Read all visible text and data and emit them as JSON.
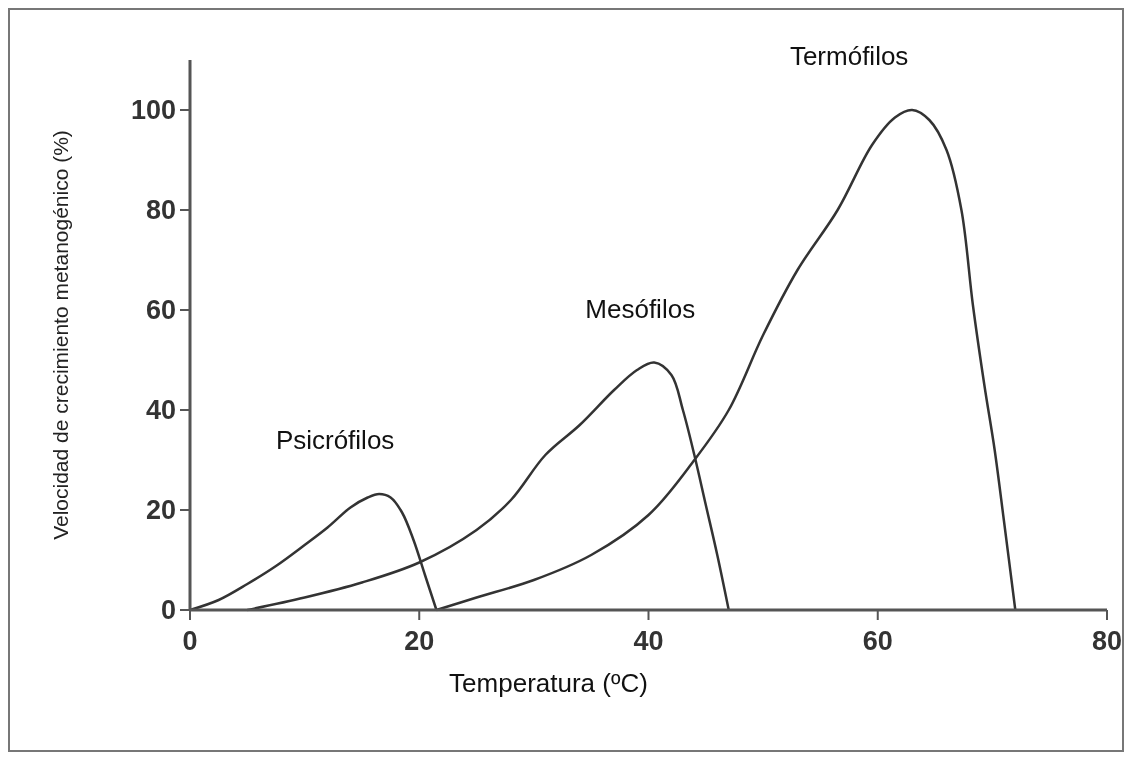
{
  "chart_data": {
    "type": "line",
    "xlabel": "Temperatura (ºC)",
    "ylabel": "Velocidad de crecimiento metanogénico (%)",
    "xlim": [
      0,
      80
    ],
    "ylim": [
      0,
      110
    ],
    "xticks": [
      0,
      20,
      40,
      60,
      80
    ],
    "yticks": [
      0,
      20,
      40,
      60,
      80,
      100
    ],
    "grid": false,
    "marker": "none",
    "line_style": "solid",
    "series": [
      {
        "name": "Psicrófilos",
        "color": "#333333",
        "x": [
          0,
          2.5,
          5,
          7.5,
          10,
          12,
          14,
          15.5,
          16.5,
          17.5,
          18.5,
          19.5,
          20.5,
          21.5
        ],
        "values": [
          0,
          2,
          5.2,
          8.8,
          13,
          16.5,
          20.5,
          22.5,
          23.2,
          22.5,
          19.5,
          14,
          7,
          0
        ]
      },
      {
        "name": "Mesófilos",
        "color": "#333333",
        "x": [
          5,
          10,
          15,
          20,
          25,
          28,
          31,
          34,
          37,
          39,
          40.5,
          42,
          43,
          44,
          45,
          46,
          47
        ],
        "values": [
          0,
          2.5,
          5.5,
          9.5,
          16,
          22,
          31,
          37,
          44,
          48,
          49.5,
          47,
          40,
          31,
          21,
          11,
          0
        ]
      },
      {
        "name": "Termófilos",
        "color": "#333333",
        "x": [
          21.5,
          25,
          30,
          35,
          40,
          44,
          47,
          50,
          53,
          56.5,
          59.5,
          61.5,
          63,
          64.5,
          66,
          67.3,
          68.3,
          69.3,
          70.2,
          71,
          72
        ],
        "values": [
          0,
          2.5,
          6,
          11,
          19,
          30,
          40,
          55,
          68,
          80,
          93,
          98.5,
          100,
          98,
          92,
          80,
          61,
          45,
          32,
          18,
          0
        ]
      }
    ]
  }
}
